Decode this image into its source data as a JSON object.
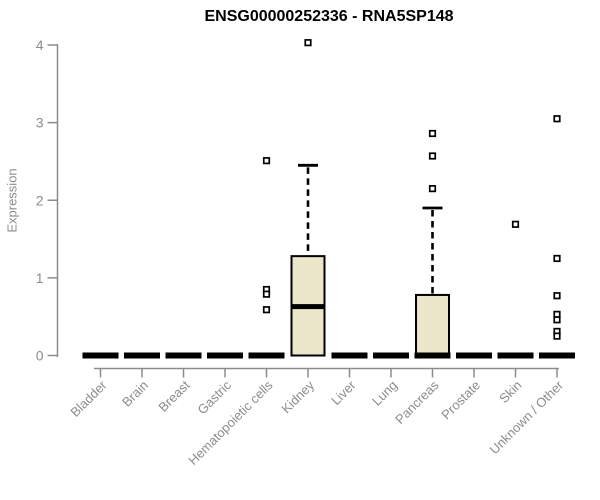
{
  "colors": {
    "background": "#FFFFFF",
    "box_fill": "#ECE7CB",
    "box_border": "#000000",
    "median": "#000000",
    "whisker": "#000000",
    "outlier_stroke": "#000000",
    "outlier_fill": "#FFFFFF",
    "axis": "#8C8C8C",
    "tick_label": "#8C8C8C",
    "title": "#000000"
  },
  "chart_data": {
    "type": "box",
    "title": "ENSG00000252336 - RNA5SP148",
    "ylabel": "Expression",
    "xlabel": "",
    "ylim": [
      0,
      4
    ],
    "yticks": [
      0,
      1,
      2,
      3,
      4
    ],
    "grid": false,
    "legend": "none",
    "categories": [
      "Bladder",
      "Brain",
      "Breast",
      "Gastric",
      "Hematopoietic cells",
      "Kidney",
      "Liver",
      "Lung",
      "Pancreas",
      "Prostate",
      "Skin",
      "Unknown / Other"
    ],
    "boxes": [
      {
        "category": "Bladder",
        "q1": 0,
        "median": 0,
        "q3": 0,
        "whisker_low": 0,
        "whisker_high": 0,
        "outliers": []
      },
      {
        "category": "Brain",
        "q1": 0,
        "median": 0,
        "q3": 0,
        "whisker_low": 0,
        "whisker_high": 0,
        "outliers": []
      },
      {
        "category": "Breast",
        "q1": 0,
        "median": 0,
        "q3": 0,
        "whisker_low": 0,
        "whisker_high": 0,
        "outliers": []
      },
      {
        "category": "Gastric",
        "q1": 0,
        "median": 0,
        "q3": 0,
        "whisker_low": 0,
        "whisker_high": 0,
        "outliers": []
      },
      {
        "category": "Hematopoietic cells",
        "q1": 0,
        "median": 0,
        "q3": 0,
        "whisker_low": 0,
        "whisker_high": 0,
        "outliers": [
          2.51,
          0.85,
          0.79,
          0.59
        ]
      },
      {
        "category": "Kidney",
        "q1": 0,
        "median": 0.63,
        "q3": 1.28,
        "whisker_low": 0,
        "whisker_high": 2.45,
        "outliers": [
          4.03
        ]
      },
      {
        "category": "Liver",
        "q1": 0,
        "median": 0,
        "q3": 0,
        "whisker_low": 0,
        "whisker_high": 0,
        "outliers": []
      },
      {
        "category": "Lung",
        "q1": 0,
        "median": 0,
        "q3": 0,
        "whisker_low": 0,
        "whisker_high": 0,
        "outliers": []
      },
      {
        "category": "Pancreas",
        "q1": 0,
        "median": 0,
        "q3": 0.78,
        "whisker_low": 0,
        "whisker_high": 1.9,
        "outliers": [
          2.86,
          2.57,
          2.15
        ]
      },
      {
        "category": "Prostate",
        "q1": 0,
        "median": 0,
        "q3": 0,
        "whisker_low": 0,
        "whisker_high": 0,
        "outliers": []
      },
      {
        "category": "Skin",
        "q1": 0,
        "median": 0,
        "q3": 0,
        "whisker_low": 0,
        "whisker_high": 0,
        "outliers": [
          1.69
        ]
      },
      {
        "category": "Unknown / Other",
        "q1": 0,
        "median": 0,
        "q3": 0,
        "whisker_low": 0,
        "whisker_high": 0,
        "outliers": [
          3.05,
          1.25,
          0.77,
          0.53,
          0.46,
          0.31,
          0.25
        ]
      }
    ]
  }
}
